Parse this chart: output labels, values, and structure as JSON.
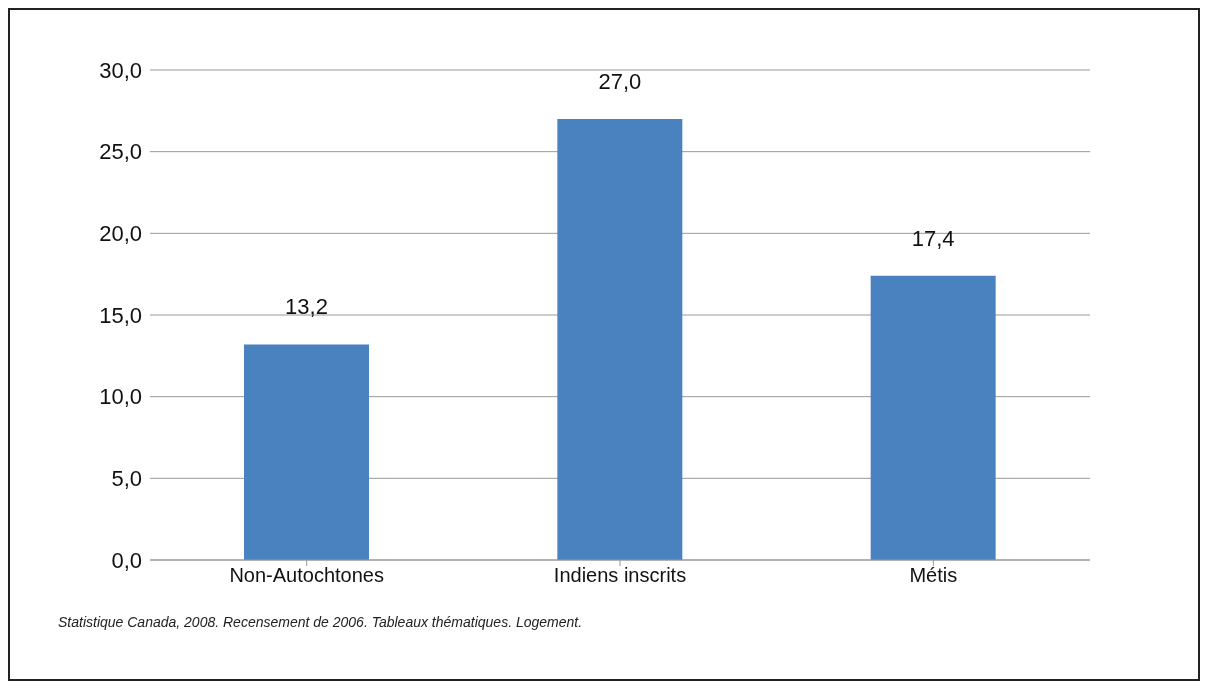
{
  "chart_data": {
    "type": "bar",
    "categories": [
      "Non-Autochtones",
      "Indiens inscrits",
      "Métis"
    ],
    "values": [
      13.2,
      27.0,
      17.4
    ],
    "value_labels": [
      "13,2",
      "27,0",
      "17,4"
    ],
    "color": "#4a81bf",
    "ylim": [
      0,
      30
    ],
    "yticks": [
      {
        "value": 0,
        "label": "0,0"
      },
      {
        "value": 5,
        "label": "5,0"
      },
      {
        "value": 10,
        "label": "10,0"
      },
      {
        "value": 15,
        "label": "15,0"
      },
      {
        "value": 20,
        "label": "20,0"
      },
      {
        "value": 25,
        "label": "25,0"
      },
      {
        "value": 30,
        "label": "30,0"
      }
    ],
    "grid": "y",
    "annotations": [
      "Statistique Canada, 2008. Recensement de 2006. Tableaux thématiques. Logement."
    ]
  }
}
